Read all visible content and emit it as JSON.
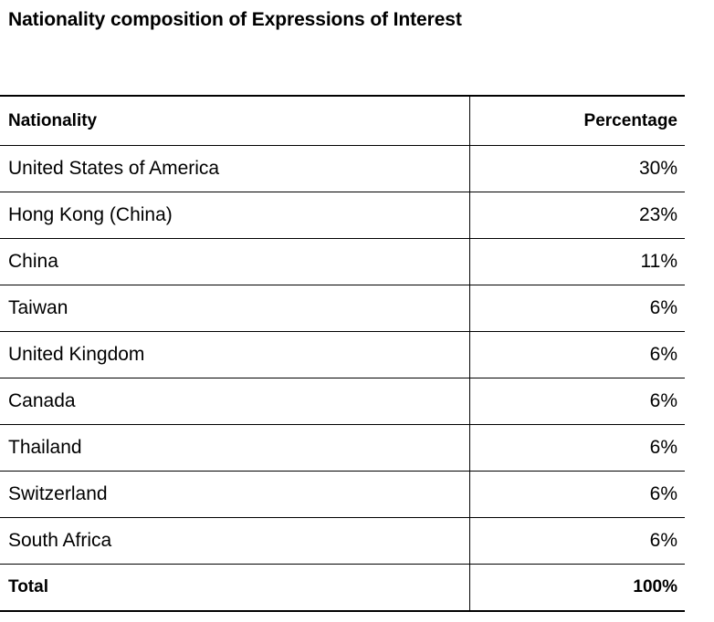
{
  "title": "Nationality composition of Expressions of Interest",
  "chart_data": {
    "type": "table",
    "title": "Nationality composition of Expressions of Interest",
    "columns": [
      "Nationality",
      "Percentage"
    ],
    "rows": [
      {
        "nationality": "United States of America",
        "percentage": "30%"
      },
      {
        "nationality": "Hong Kong (China)",
        "percentage": "23%"
      },
      {
        "nationality": "China",
        "percentage": "11%"
      },
      {
        "nationality": "Taiwan",
        "percentage": "6%"
      },
      {
        "nationality": "United Kingdom",
        "percentage": "6%"
      },
      {
        "nationality": "Canada",
        "percentage": "6%"
      },
      {
        "nationality": "Thailand",
        "percentage": "6%"
      },
      {
        "nationality": "Switzerland",
        "percentage": "6%"
      },
      {
        "nationality": "South Africa",
        "percentage": "6%"
      }
    ],
    "total": {
      "label": "Total",
      "percentage": "100%"
    }
  }
}
